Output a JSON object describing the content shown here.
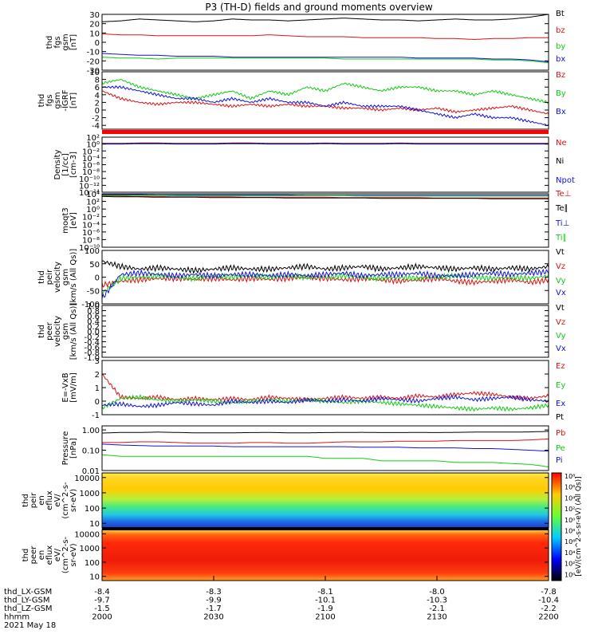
{
  "title": "P3 (TH-D) fields and ground moments overview",
  "colors": {
    "black": "#000000",
    "red": "#dd1111",
    "green": "#11cc11",
    "blue": "#1111dd"
  },
  "chart_data": [
    {
      "type": "line",
      "name": "thd fgs gsm [nT]",
      "ylabel": [
        "thd",
        "fgs",
        "gsm",
        "[nT]"
      ],
      "ylim": [
        -30,
        30
      ],
      "yticks": [
        "30",
        "20",
        "10",
        "0",
        "-10",
        "-20",
        "-30"
      ],
      "ytick_vals": [
        30,
        20,
        10,
        0,
        -10,
        -20,
        -30
      ],
      "series": [
        {
          "name": "Bt",
          "color": "black",
          "values": [
            22,
            23,
            25,
            24,
            23,
            22,
            23,
            25,
            24,
            24,
            23,
            24,
            25,
            26,
            25,
            24,
            24,
            23,
            24,
            25,
            24,
            24,
            25,
            27,
            30
          ]
        },
        {
          "name": "bz",
          "color": "red",
          "values": [
            9,
            8,
            8,
            7,
            7,
            7,
            7,
            7,
            7,
            8,
            7,
            6,
            6,
            6,
            5,
            5,
            5,
            5,
            4,
            4,
            3,
            4,
            4,
            5,
            5
          ]
        },
        {
          "name": "by",
          "color": "green",
          "values": [
            -16,
            -17,
            -17,
            -18,
            -17,
            -17,
            -17,
            -17,
            -17,
            -17,
            -17,
            -17,
            -17,
            -18,
            -18,
            -18,
            -18,
            -18,
            -18,
            -18,
            -18,
            -19,
            -19,
            -20,
            -22
          ]
        },
        {
          "name": "bx",
          "color": "blue",
          "values": [
            -12,
            -13,
            -14,
            -14,
            -15,
            -15,
            -15,
            -16,
            -16,
            -16,
            -16,
            -16,
            -16,
            -16,
            -16,
            -16,
            -16,
            -17,
            -17,
            -17,
            -17,
            -18,
            -18,
            -19,
            -21
          ]
        }
      ]
    },
    {
      "type": "line",
      "name": "thd fgs gsm -IGRF [nT]",
      "ylabel": [
        "thd",
        "fgs",
        "gsm",
        "-IGRF",
        "[nT]"
      ],
      "ylim": [
        -5,
        10
      ],
      "yticks": [
        "10",
        "8",
        "6",
        "4",
        "2",
        "0",
        "-2",
        "-4"
      ],
      "ytick_vals": [
        10,
        8,
        6,
        4,
        2,
        0,
        -2,
        -4
      ],
      "series": [
        {
          "name": "Bz",
          "color": "red",
          "values": [
            5,
            3,
            2,
            1.5,
            2,
            2,
            1.5,
            1,
            1.5,
            1,
            1.5,
            1,
            1,
            0.5,
            0.5,
            0,
            0.5,
            0,
            0.5,
            -0.5,
            0,
            0.5,
            1,
            0,
            -1
          ]
        },
        {
          "name": "By",
          "color": "green",
          "values": [
            7,
            8,
            6,
            5,
            4,
            3,
            4,
            5,
            3,
            5,
            4,
            6,
            5,
            7,
            6,
            5,
            6,
            6,
            5,
            5,
            4,
            5,
            4,
            3,
            2
          ]
        },
        {
          "name": "Bx",
          "color": "blue",
          "values": [
            6,
            6,
            5,
            4,
            3,
            3,
            2,
            3,
            2,
            3,
            2,
            2,
            1,
            2,
            1,
            1,
            1,
            0,
            -1,
            -2,
            -1,
            -2,
            -2,
            -3,
            -4
          ]
        }
      ]
    },
    {
      "type": "line",
      "name": "Density [1/cc]",
      "ylabel": [
        "Density",
        "[1/cc]",
        "[cm-3]"
      ],
      "log": true,
      "ylim": [
        -14,
        2
      ],
      "yticks": [
        "10²",
        "10⁰",
        "10⁻²",
        "10⁻⁴",
        "10⁻⁶",
        "10⁻⁸",
        "10⁻¹⁰",
        "10⁻¹²",
        "10⁻¹⁴"
      ],
      "ytick_vals": [
        2,
        0,
        -2,
        -4,
        -6,
        -8,
        -10,
        -12,
        -14
      ],
      "series": [
        {
          "name": "Ne",
          "color": "red",
          "values": [
            0.2,
            0.2,
            0.3,
            0.3,
            0.2,
            0.2,
            0.2,
            0.3,
            0.3,
            0.2,
            0.2,
            0.2,
            0.3,
            0.2,
            0.2,
            0.2,
            0.3,
            0.2,
            0.2,
            0.2,
            0.2,
            0.2,
            0.2,
            0.2,
            0.2
          ]
        },
        {
          "name": "Ni",
          "color": "black",
          "values": [
            0.1,
            0.1,
            0.2,
            0.2,
            0.1,
            0.1,
            0.1,
            0.2,
            0.2,
            0.1,
            0.1,
            0.1,
            0.2,
            0.1,
            0.1,
            0.1,
            0.2,
            0.1,
            0.1,
            0.1,
            0.1,
            0.1,
            0.1,
            0.1,
            0.1
          ]
        },
        {
          "name": "Npot",
          "color": "blue",
          "values": [
            0,
            0,
            0.1,
            0.1,
            0,
            0,
            0,
            0.1,
            0.1,
            0,
            0,
            0,
            0.1,
            0,
            0,
            0,
            0.1,
            0,
            0,
            0,
            0,
            0,
            0,
            0,
            0
          ]
        }
      ]
    },
    {
      "type": "line",
      "name": "moqt3 [eV]",
      "ylabel": [
        "moqt3",
        "[eV]"
      ],
      "log": true,
      "ylim": [
        -10,
        4
      ],
      "yticks": [
        "10⁴",
        "10²",
        "10⁰",
        "10⁻²",
        "10⁻⁴",
        "10⁻⁶",
        "10⁻⁸",
        "10⁻¹⁰"
      ],
      "ytick_vals": [
        4,
        2,
        0,
        -2,
        -4,
        -6,
        -8,
        -10
      ],
      "series": [
        {
          "name": "Te⊥",
          "color": "red",
          "values": [
            3.5,
            3.4,
            3.3,
            3.3,
            3.2,
            3.2,
            3.2,
            3.2,
            3.1,
            3.1,
            3.1,
            3.1,
            3.1,
            3.0,
            3.0,
            3.0,
            3.0,
            3.0,
            2.9,
            2.9,
            2.9,
            2.9,
            2.9,
            2.9,
            2.9
          ]
        },
        {
          "name": "Te∥",
          "color": "black",
          "values": [
            3.3,
            3.2,
            3.2,
            3.1,
            3.1,
            3.1,
            3.0,
            3.0,
            3.0,
            3.0,
            2.9,
            2.9,
            2.9,
            2.9,
            2.9,
            2.8,
            2.8,
            2.8,
            2.8,
            2.8,
            2.8,
            2.7,
            2.7,
            2.7,
            2.7
          ]
        },
        {
          "name": "Ti⊥",
          "color": "blue",
          "values": [
            3.8,
            3.8,
            3.8,
            3.7,
            3.7,
            3.7,
            3.7,
            3.7,
            3.7,
            3.7,
            3.7,
            3.6,
            3.6,
            3.6,
            3.6,
            3.6,
            3.6,
            3.6,
            3.6,
            3.6,
            3.6,
            3.6,
            3.6,
            3.6,
            3.6
          ]
        },
        {
          "name": "Ti∥",
          "color": "green",
          "values": [
            3.6,
            3.6,
            3.6,
            3.6,
            3.5,
            3.5,
            3.5,
            3.5,
            3.5,
            3.5,
            3.5,
            3.5,
            3.5,
            3.5,
            3.4,
            3.4,
            3.4,
            3.4,
            3.4,
            3.4,
            3.4,
            3.4,
            3.4,
            3.4,
            3.4
          ]
        }
      ]
    },
    {
      "type": "line",
      "name": "thd peir velocity gsm",
      "ylabel": [
        "thd",
        "peir",
        "velocity",
        "gsm",
        "[km/s (All Qs)]"
      ],
      "ylim": [
        -100,
        100
      ],
      "yticks": [
        "100",
        "50",
        "0",
        "-50",
        "-100"
      ],
      "ytick_vals": [
        100,
        50,
        0,
        -50,
        -100
      ],
      "series": [
        {
          "name": "Vt",
          "color": "black",
          "values": [
            60,
            40,
            30,
            35,
            30,
            25,
            30,
            35,
            30,
            30,
            35,
            40,
            30,
            35,
            40,
            30,
            35,
            40,
            35,
            30,
            35,
            30,
            35,
            30,
            40
          ]
        },
        {
          "name": "Vz",
          "color": "red",
          "values": [
            -30,
            -15,
            -10,
            -5,
            -5,
            -8,
            -5,
            -10,
            -5,
            -8,
            -5,
            0,
            -5,
            -10,
            -5,
            -10,
            -15,
            -10,
            -5,
            -15,
            -20,
            -15,
            -10,
            -20,
            -10
          ]
        },
        {
          "name": "Vy",
          "color": "green",
          "values": [
            -60,
            -5,
            0,
            5,
            0,
            -5,
            5,
            0,
            5,
            0,
            5,
            0,
            0,
            5,
            0,
            -5,
            0,
            -5,
            0,
            5,
            0,
            -5,
            0,
            -5,
            5
          ]
        },
        {
          "name": "Vx",
          "color": "blue",
          "values": [
            -80,
            10,
            15,
            10,
            5,
            10,
            5,
            10,
            10,
            5,
            10,
            5,
            10,
            15,
            5,
            10,
            10,
            15,
            5,
            5,
            10,
            15,
            10,
            15,
            20
          ]
        }
      ]
    },
    {
      "type": "line",
      "name": "thd peer velocity gsm",
      "ylabel": [
        "thd",
        "peer",
        "velocity",
        "gsm",
        "[km/s (All Qs)]"
      ],
      "ylim": [
        -1,
        1
      ],
      "yticks": [
        "1.0",
        "0.8",
        "0.6",
        "0.4",
        "0.2",
        "0.0",
        "-0.2",
        "-0.4",
        "-0.6",
        "-0.8",
        "-1.0"
      ],
      "ytick_vals": [
        1,
        0.8,
        0.6,
        0.4,
        0.2,
        0,
        -0.2,
        -0.4,
        -0.6,
        -0.8,
        -1
      ],
      "series": [
        {
          "name": "Vt",
          "color": "black",
          "values": []
        },
        {
          "name": "Vz",
          "color": "red",
          "values": []
        },
        {
          "name": "Vy",
          "color": "green",
          "values": []
        },
        {
          "name": "Vx",
          "color": "blue",
          "values": []
        }
      ]
    },
    {
      "type": "line",
      "name": "E=-VxB [mV/m]",
      "ylabel": [
        "E=-VxB",
        "[mV/m]"
      ],
      "ylim": [
        -1,
        3
      ],
      "yticks": [
        "3",
        "2",
        "1",
        "0",
        "-1"
      ],
      "ytick_vals": [
        3,
        2,
        1,
        0,
        -1
      ],
      "series": [
        {
          "name": "Ez",
          "color": "red",
          "values": [
            2,
            0.3,
            0.2,
            0.3,
            0.1,
            0.2,
            0.1,
            0.2,
            0.1,
            0.3,
            0.2,
            0.1,
            0.2,
            0.3,
            0.2,
            0.3,
            0.2,
            0.4,
            0.3,
            0.5,
            0.6,
            0.5,
            0.3,
            0.2,
            0.4
          ]
        },
        {
          "name": "Ey",
          "color": "green",
          "values": [
            -0.5,
            0.2,
            0.3,
            0.1,
            0,
            0.1,
            0,
            -0.1,
            0,
            0.1,
            0,
            0.1,
            0,
            -0.1,
            0,
            -0.1,
            -0.2,
            -0.3,
            -0.4,
            -0.5,
            -0.6,
            -0.5,
            -0.6,
            -0.5,
            -0.3
          ]
        },
        {
          "name": "Ex",
          "color": "blue",
          "values": [
            -0.3,
            -0.2,
            -0.4,
            -0.3,
            -0.1,
            -0.2,
            -0.3,
            0,
            -0.1,
            0,
            -0.1,
            0.1,
            0,
            0.1,
            0,
            0.2,
            0.1,
            0,
            0.2,
            0.3,
            0.1,
            0.2,
            0.3,
            0.1,
            0
          ]
        }
      ]
    },
    {
      "type": "line",
      "name": "Pressure [nPa]",
      "ylabel": [
        "Pressure",
        "[nPa]"
      ],
      "log": true,
      "ylim": [
        -2,
        0.2
      ],
      "yticks": [
        "1.00",
        "0.10",
        "0.01"
      ],
      "ytick_vals": [
        0,
        -1,
        -2
      ],
      "series": [
        {
          "name": "Pt",
          "color": "black",
          "values": [
            0.7,
            0.75,
            0.75,
            0.78,
            0.75,
            0.72,
            0.72,
            0.72,
            0.74,
            0.75,
            0.72,
            0.72,
            0.74,
            0.75,
            0.76,
            0.74,
            0.74,
            0.75,
            0.74,
            0.76,
            0.78,
            0.78,
            0.78,
            0.8,
            0.85
          ]
        },
        {
          "name": "Pb",
          "color": "red",
          "values": [
            0.24,
            0.24,
            0.26,
            0.26,
            0.24,
            0.22,
            0.22,
            0.22,
            0.24,
            0.24,
            0.22,
            0.22,
            0.24,
            0.26,
            0.26,
            0.26,
            0.28,
            0.28,
            0.28,
            0.3,
            0.3,
            0.3,
            0.3,
            0.32,
            0.36
          ]
        },
        {
          "name": "Pe",
          "color": "green",
          "values": [
            0.06,
            0.05,
            0.05,
            0.05,
            0.05,
            0.05,
            0.05,
            0.05,
            0.05,
            0.05,
            0.05,
            0.05,
            0.04,
            0.04,
            0.04,
            0.03,
            0.03,
            0.03,
            0.03,
            0.025,
            0.025,
            0.025,
            0.022,
            0.02,
            0.015
          ]
        },
        {
          "name": "Pi",
          "color": "blue",
          "values": [
            0.2,
            0.18,
            0.17,
            0.16,
            0.16,
            0.16,
            0.16,
            0.15,
            0.15,
            0.15,
            0.15,
            0.15,
            0.15,
            0.15,
            0.14,
            0.14,
            0.14,
            0.13,
            0.13,
            0.13,
            0.12,
            0.12,
            0.11,
            0.1,
            0.09
          ]
        }
      ]
    },
    {
      "type": "heatmap",
      "name": "thd peir en eflux",
      "ylabel": [
        "thd",
        "peir",
        "en",
        "eflux",
        "eV/",
        "(cm^2-s-",
        "sr-eV)"
      ],
      "log": true,
      "ylim": [
        5,
        20000
      ],
      "yticks": [
        "10000",
        "1000",
        "100",
        "10"
      ],
      "ytick_vals": [
        10000,
        1000,
        100,
        10
      ]
    },
    {
      "type": "heatmap",
      "name": "thd peer en eflux",
      "ylabel": [
        "thd",
        "peer",
        "en",
        "eflux",
        "eV/",
        "(cm^2-s-",
        "sr-eV)"
      ],
      "log": true,
      "ylim": [
        5,
        20000
      ],
      "yticks": [
        "10000",
        "1000",
        "100",
        "10"
      ],
      "ytick_vals": [
        10000,
        1000,
        100,
        10
      ]
    }
  ],
  "colorbar": {
    "ticks": [
      "10⁸",
      "10⁶",
      "10⁴",
      "10²",
      "10⁰",
      "10⁸",
      "10⁶",
      "10⁴",
      "10²",
      "10⁰"
    ],
    "label": "[eV/(cm^2-s-sr-eV) (All Qs)]"
  },
  "x_axis": {
    "rows": [
      {
        "label": "thd_LX-GSM",
        "values": [
          "-8.4",
          "-8.3",
          "-8.1",
          "-8.0",
          "-7.8"
        ]
      },
      {
        "label": "thd_LY-GSM",
        "values": [
          "-9.7",
          "-9.9",
          "-10.1",
          "-10.3",
          "-10.4"
        ]
      },
      {
        "label": "thd_LZ-GSM",
        "values": [
          "-1.5",
          "-1.7",
          "-1.9",
          "-2.1",
          "-2.2"
        ]
      },
      {
        "label": "hhmm",
        "values": [
          "2000",
          "2030",
          "2100",
          "2130",
          "2200"
        ]
      }
    ],
    "date": "2021 May 18"
  }
}
